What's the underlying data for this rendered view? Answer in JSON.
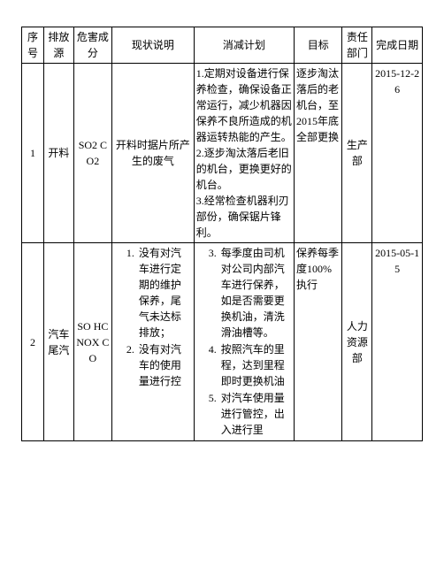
{
  "styling": {
    "background_color": "#ffffff",
    "border_color": "#000000",
    "font_family": "SimSun",
    "header_fontsize": 12,
    "cell_fontsize": 12,
    "line_height": 1.5
  },
  "columns": {
    "seq": "序号",
    "source": "排放源",
    "hazard": "危害成分",
    "status": "现状说明",
    "plan": "消减计划",
    "target": "目标",
    "dept": "责任部门",
    "date": "完成日期"
  },
  "rows": [
    {
      "seq": "1",
      "source": "开料",
      "hazard": "SO2 CO2",
      "status": "开料时据片所产生的废气",
      "plan_items": [
        "定期对设备进行保养检查，确保设备正常运行，减少机器因保养不良所造成的机器运转热能的产生。",
        "逐步淘汰落后老旧的机台，更换更好的机台。",
        "经常检查机器利刃部份，确保锯片锋利。"
      ],
      "target": "逐步淘汰落后的老机台，至2015年底全部更换",
      "dept": "生产部",
      "date": "2015-12-26"
    },
    {
      "seq": "2",
      "source": "汽车尾汽",
      "hazard": "SO HC NOX CO",
      "status_items": [
        "没有对汽车进行定期的维护保养，尾气未达标排放；",
        "没有对汽车的使用量进行控"
      ],
      "plan_start": 3,
      "plan_items": [
        "每季度由司机对公司内部汽车进行保养，如是否需要更换机油，清洗滑油槽等。",
        "按照汽车的里程，达到里程即时更换机油",
        "对汽车使用量进行管控，出入进行里"
      ],
      "target": "保养每季度100%执行",
      "dept": "人力资源部",
      "date": "2015-05-15"
    }
  ]
}
